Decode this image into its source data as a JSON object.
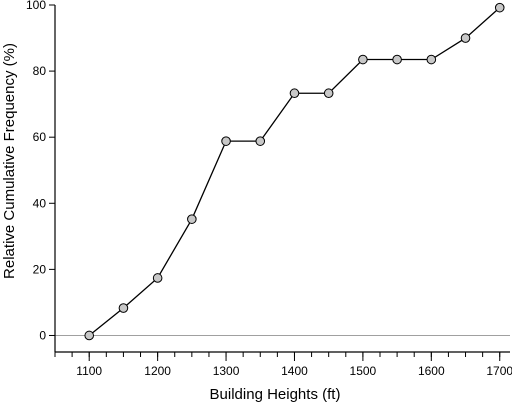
{
  "chart_data": {
    "type": "line",
    "title": "",
    "xlabel": "Building Heights (ft)",
    "ylabel": "Relative Cumulative Frequency (%)",
    "xlim": [
      1050,
      1715
    ],
    "ylim": [
      -5,
      100
    ],
    "x_ticks": [
      1100,
      1200,
      1300,
      1400,
      1500,
      1600,
      1700
    ],
    "x_minor_step": 25,
    "y_ticks": [
      0,
      20,
      40,
      60,
      80,
      100
    ],
    "reference_line_y": 0,
    "grid": false,
    "series": [
      {
        "x": [
          1100,
          1150,
          1200,
          1250,
          1300,
          1350,
          1400,
          1450,
          1500,
          1550,
          1600,
          1650,
          1700
        ],
        "y": [
          0,
          8.3,
          17.4,
          35.2,
          58.8,
          58.8,
          73.3,
          73.3,
          83.5,
          83.5,
          83.5,
          90.0,
          99.2
        ]
      }
    ]
  }
}
